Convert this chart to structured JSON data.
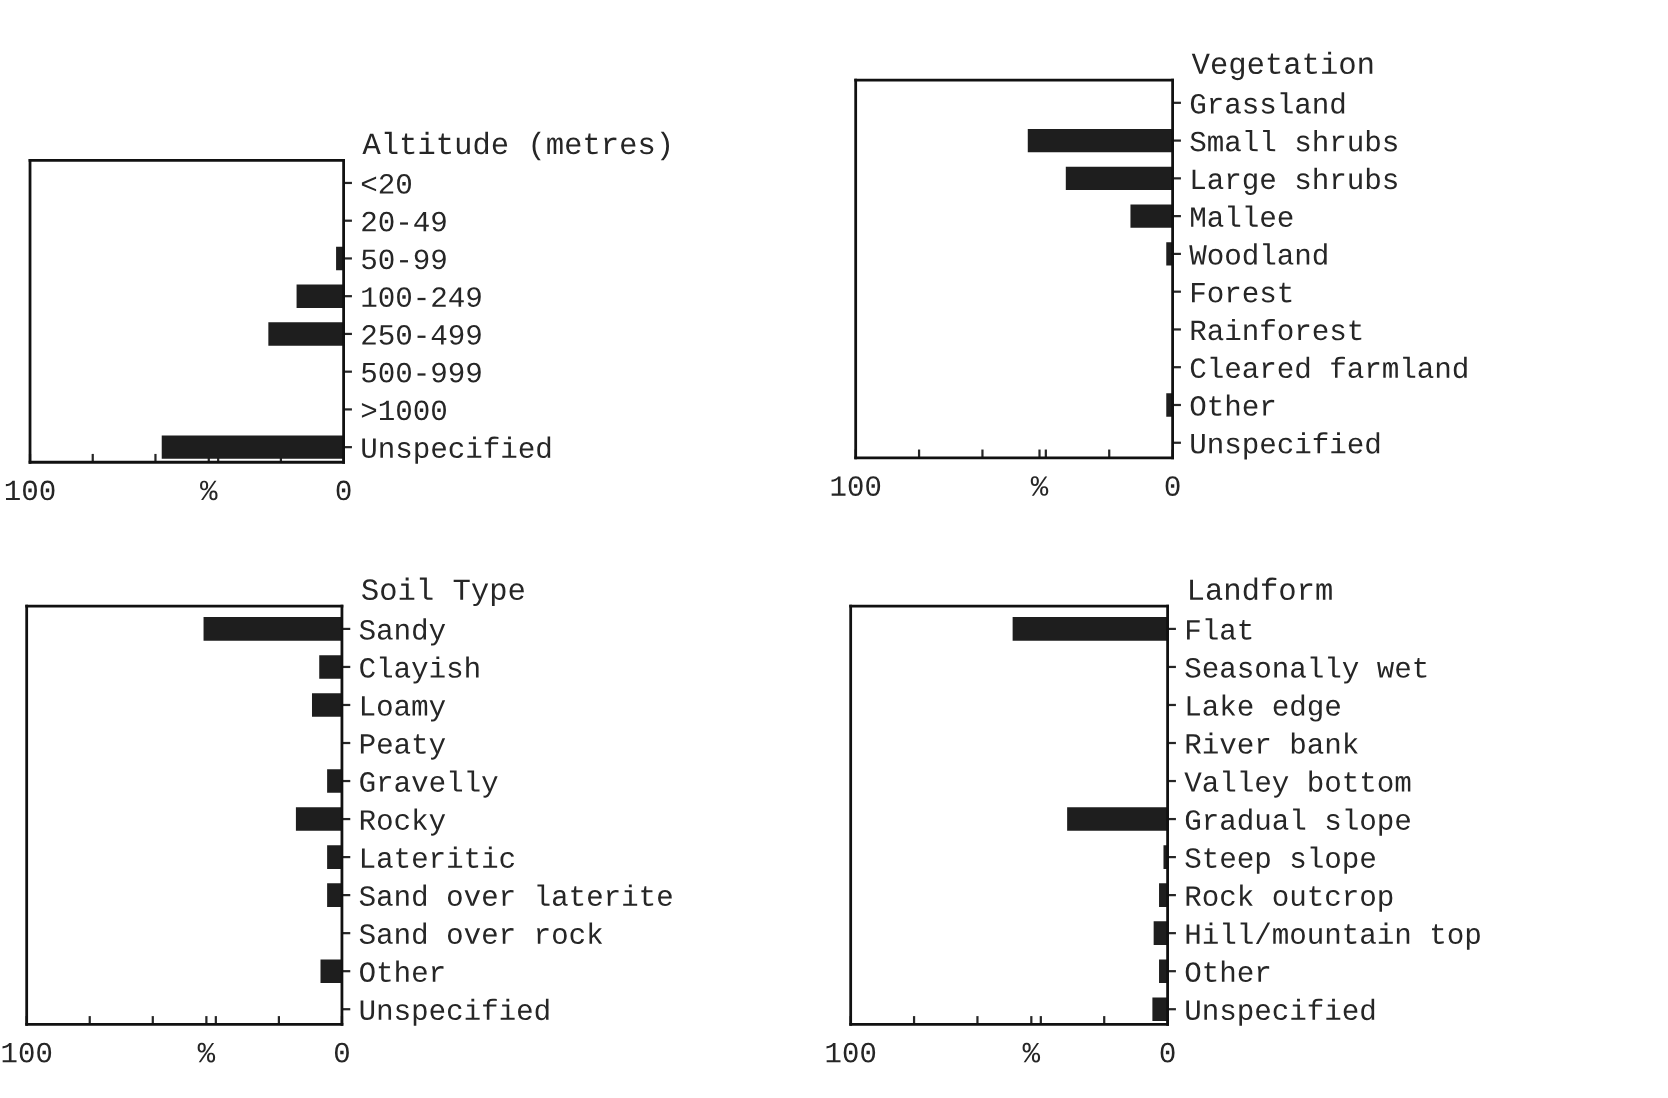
{
  "chart_data": [
    {
      "type": "bar",
      "orientation": "horizontal",
      "title": "Altitude (metres)",
      "categories": [
        "<20",
        "20-49",
        "50-99",
        "100-249",
        "250-499",
        "500-999",
        ">1000",
        "Unspecified"
      ],
      "values": [
        0,
        0,
        2.4,
        15,
        24,
        0,
        0,
        58
      ],
      "color": "#1e1e1e",
      "xlim": [
        100,
        0
      ],
      "xticks": [
        100,
        {
          "value": 80,
          "label": null
        },
        {
          "value": 60,
          "label": null
        },
        {
          "value": 43,
          "label": "%"
        },
        {
          "value": 40,
          "label": null
        },
        {
          "value": 20,
          "label": null
        },
        0
      ],
      "grid": false
    },
    {
      "type": "bar",
      "orientation": "horizontal",
      "title": "Vegetation",
      "categories": [
        "Grassland",
        "Small shrubs",
        "Large shrubs",
        "Mallee",
        "Woodland",
        "Forest",
        "Rainforest",
        "Cleared farmland",
        "Other",
        "Unspecified"
      ],
      "values": [
        0,
        45.7,
        33.7,
        13.3,
        2,
        0,
        0,
        0,
        2,
        0
      ],
      "color": "#1e1e1e",
      "xlim": [
        100,
        0
      ],
      "xticks": [
        100,
        {
          "value": 80,
          "label": null
        },
        {
          "value": 60,
          "label": null
        },
        {
          "value": 42,
          "label": "%"
        },
        {
          "value": 40,
          "label": null
        },
        {
          "value": 20,
          "label": null
        },
        0
      ],
      "grid": false
    },
    {
      "type": "bar",
      "orientation": "horizontal",
      "title": "Soil Type",
      "categories": [
        "Sandy",
        "Clayish",
        "Loamy",
        "Peaty",
        "Gravelly",
        "Rocky",
        "Lateritic",
        "Sand over laterite",
        "Sand over rock",
        "Other",
        "Unspecified"
      ],
      "values": [
        43.9,
        7.2,
        9.5,
        0,
        4.7,
        14.6,
        4.7,
        4.7,
        0,
        6.8,
        0
      ],
      "color": "#1e1e1e",
      "xlim": [
        100,
        0
      ],
      "xticks": [
        100,
        {
          "value": 80,
          "label": null
        },
        {
          "value": 60,
          "label": null
        },
        {
          "value": 43,
          "label": "%"
        },
        {
          "value": 40,
          "label": null
        },
        {
          "value": 20,
          "label": null
        },
        0
      ],
      "grid": false
    },
    {
      "type": "bar",
      "orientation": "horizontal",
      "title": "Landform",
      "categories": [
        "Flat",
        "Seasonally wet",
        "Lake edge",
        "River bank",
        "Valley bottom",
        "Gradual slope",
        "Steep slope",
        "Rock outcrop",
        "Hill/mountain top",
        "Other",
        "Unspecified"
      ],
      "values": [
        48.9,
        0,
        0,
        0,
        0,
        31.7,
        1.3,
        2.7,
        4.4,
        2.7,
        4.8
      ],
      "color": "#1e1e1e",
      "xlim": [
        100,
        0
      ],
      "xticks": [
        100,
        {
          "value": 80,
          "label": null
        },
        {
          "value": 60,
          "label": null
        },
        {
          "value": 43,
          "label": "%"
        },
        {
          "value": 40,
          "label": null
        },
        {
          "value": 20,
          "label": null
        },
        0
      ],
      "grid": false
    }
  ]
}
